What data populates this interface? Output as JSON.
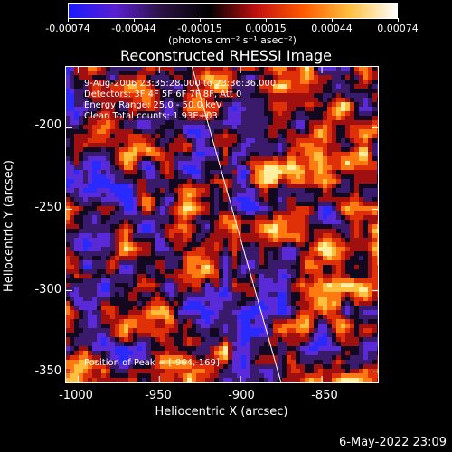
{
  "colorbar": {
    "ticks": [
      "-0.00074",
      "-0.00044",
      "-0.00015",
      "0.00015",
      "0.00044",
      "0.00074"
    ],
    "units": "(photons cm⁻² s⁻¹ asec⁻²)",
    "colors": [
      "#1a1aff",
      "#5a1fd0",
      "#2a1240",
      "#000000",
      "#c01010",
      "#ff5a00",
      "#ffc040",
      "#ffffff"
    ]
  },
  "title": "Reconstructed RHESSI Image",
  "info": {
    "time_range": "9-Aug-2006 23:35:28.000 to 23:36:36.000",
    "detectors": "Detectors: 3F 4F 5F 6F 7F 8F, Att 0",
    "energy": "Energy Range: 25.0 - 50.0 keV",
    "clean": "Clean    Total counts: 1.93E+03",
    "peak": "Position of Peak = [-964,-169]"
  },
  "axes": {
    "xlabel": "Heliocentric X (arcsec)",
    "ylabel": "Heliocentric Y (arcsec)",
    "xticks": [
      "-1000",
      "-950",
      "-900",
      "-850"
    ],
    "yticks": [
      "-200",
      "-250",
      "-300",
      "-350"
    ]
  },
  "footer": {
    "date": "6-May-2022 23:09"
  },
  "chart_data": {
    "type": "heatmap",
    "title": "Reconstructed RHESSI Image",
    "xlabel": "Heliocentric X (arcsec)",
    "ylabel": "Heliocentric Y (arcsec)",
    "xlim": [
      -1008,
      -815
    ],
    "ylim": [
      -357,
      -162
    ],
    "xticks": [
      -1000,
      -950,
      -900,
      -850
    ],
    "yticks": [
      -200,
      -250,
      -300,
      -350
    ],
    "colorbar_range": [
      -0.00074,
      0.00074
    ],
    "peak": [
      -964,
      -169
    ],
    "limb_line": [
      [
        -930,
        -162
      ],
      [
        -875,
        -357
      ]
    ]
  }
}
